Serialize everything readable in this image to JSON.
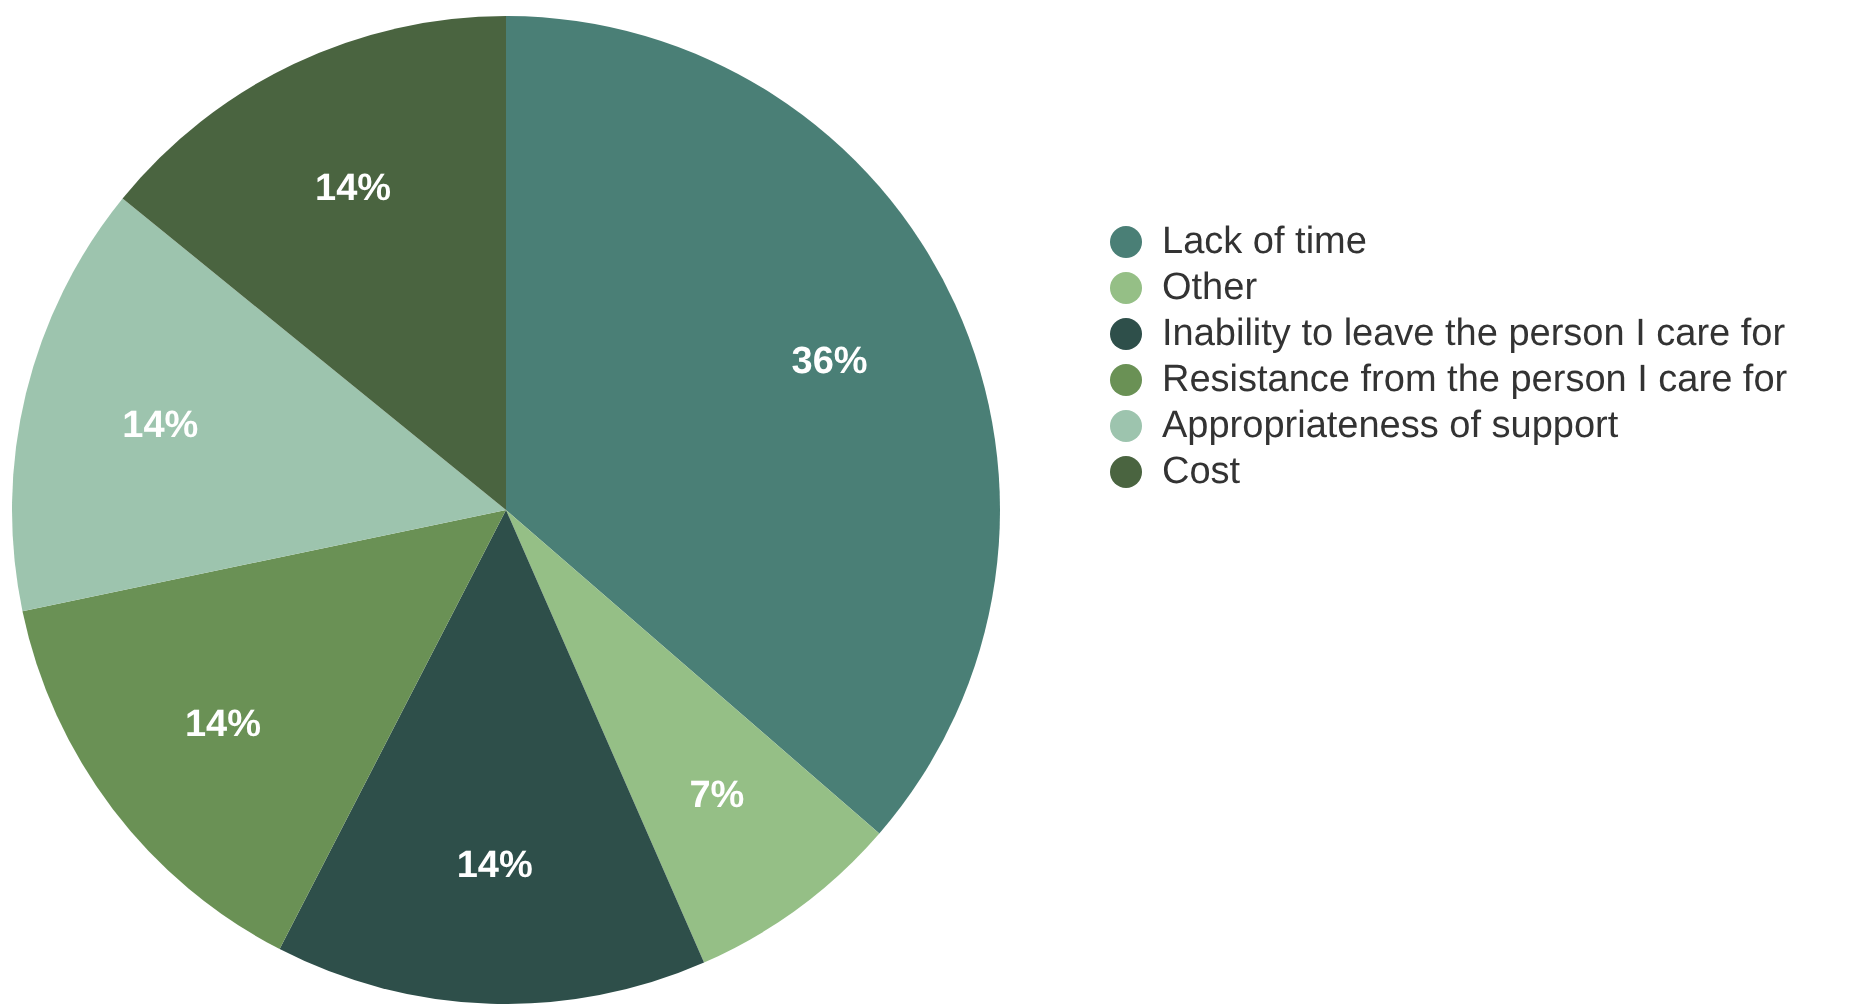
{
  "chart_data": {
    "type": "pie",
    "categories": [
      "Lack of time",
      "Other",
      "Inability to leave the person I care for",
      "Resistance from the person I care for",
      "Appropriateness of support",
      "Cost"
    ],
    "values": [
      36,
      7,
      14,
      14,
      14,
      14
    ],
    "value_labels": [
      "36%",
      "7%",
      "14%",
      "14%",
      "14%",
      "14%"
    ],
    "colors": [
      "#4a7f76",
      "#95bf86",
      "#2e4f4a",
      "#6a9155",
      "#9dc4ae",
      "#4a6440"
    ],
    "legend": "right"
  }
}
